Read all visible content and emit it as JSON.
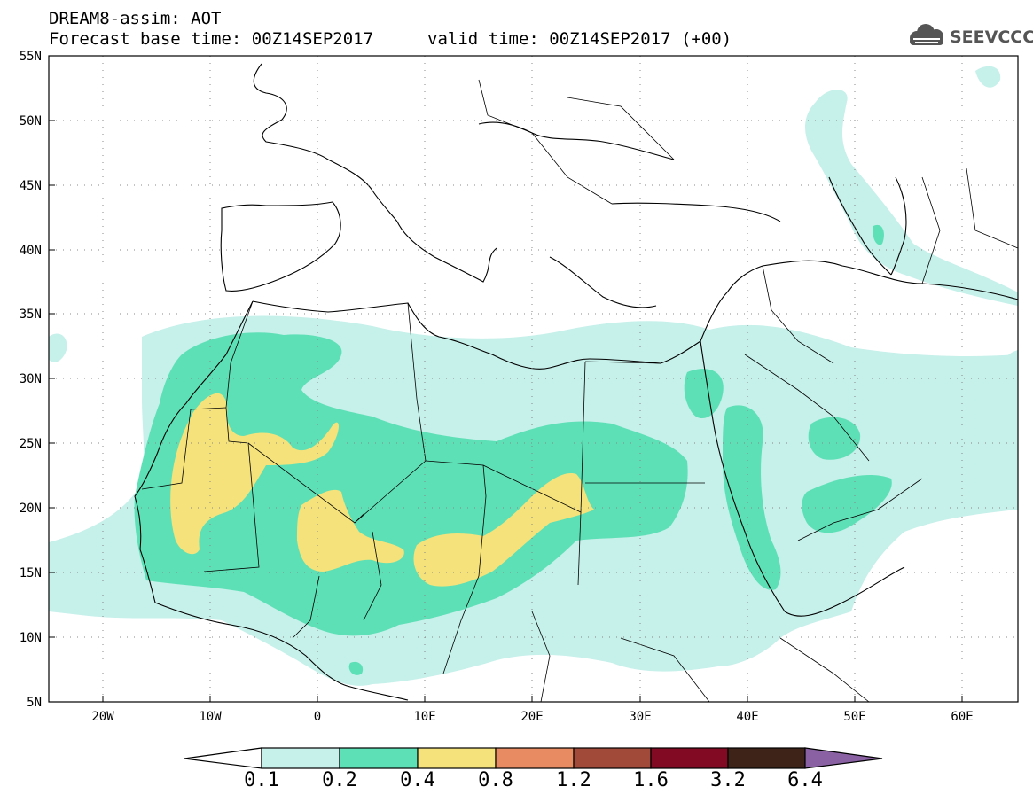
{
  "header": {
    "title": "DREAM8-assim: AOT",
    "base": "Forecast base time: 00Z14SEP2017",
    "valid": "valid time: 00Z14SEP2017 (+00)"
  },
  "logo": {
    "text": "SEEVCCC",
    "icon": "cloud-icon"
  },
  "map": {
    "lon_range": [
      -25,
      65
    ],
    "lat_range": [
      5,
      55
    ],
    "lat_labels": [
      "55N",
      "50N",
      "45N",
      "40N",
      "35N",
      "30N",
      "25N",
      "20N",
      "15N",
      "10N",
      "5N"
    ],
    "lon_labels": [
      "20W",
      "10W",
      "0",
      "10E",
      "20E",
      "30E",
      "40E",
      "50E",
      "60E"
    ],
    "grid": "dotted",
    "field": "AOT"
  },
  "colorbar": {
    "labels": [
      "0.1",
      "0.2",
      "0.4",
      "0.8",
      "1.2",
      "1.6",
      "3.2",
      "6.4"
    ],
    "colors": [
      "#c6f0ea",
      "#5ee0b6",
      "#f5e27a",
      "#e88a62",
      "#a24a3a",
      "#820a22",
      "#3e2418",
      "#8a62a4"
    ]
  }
}
